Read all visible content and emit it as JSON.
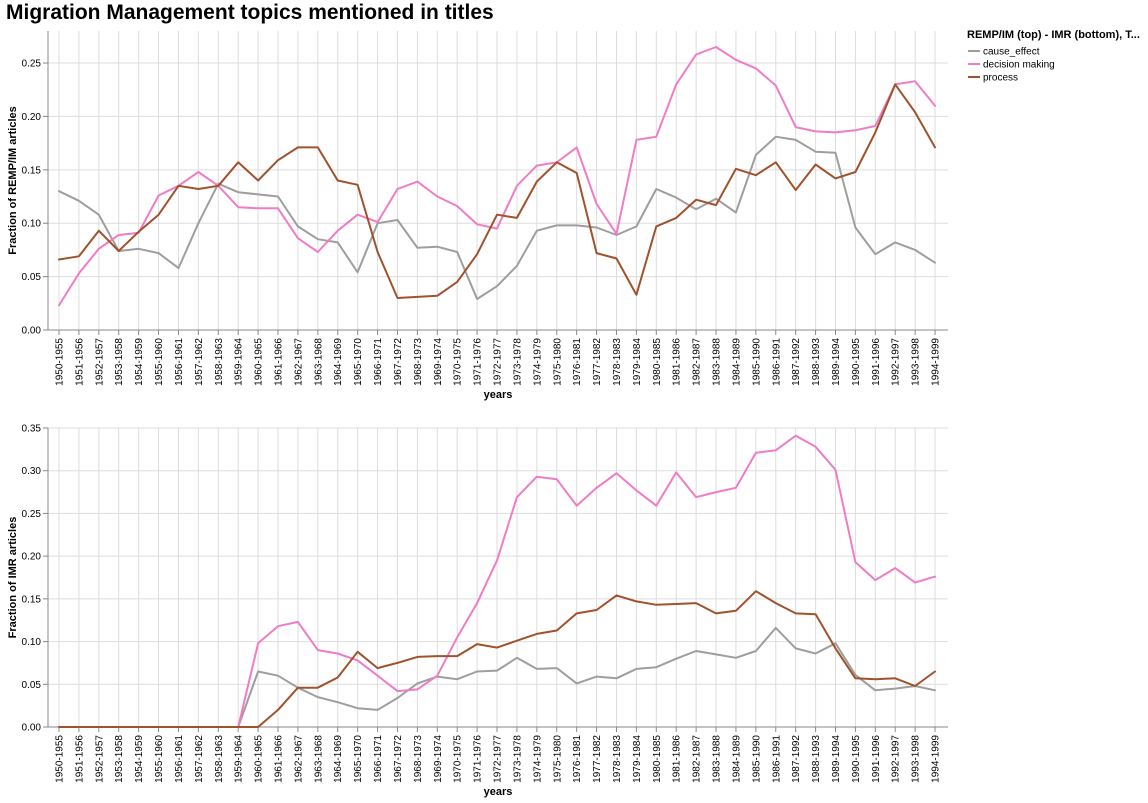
{
  "title": "Migration Management topics mentioned in titles",
  "legend": {
    "title": "REMP/IM (top) - IMR (bottom), T...",
    "position": "top-right"
  },
  "colors": {
    "cause_effect": "#9e9e9e",
    "decision making": "#f07cc6",
    "process": "#a0522d"
  },
  "chart_data": [
    {
      "type": "line",
      "xlabel": "years",
      "ylabel": "Fraction of REMP/IM articles",
      "ylim": [
        0,
        0.28
      ],
      "yticks": [
        0.0,
        0.05,
        0.1,
        0.15,
        0.2,
        0.25
      ],
      "ytick_labels": [
        "0.00",
        "0.05",
        "0.10",
        "0.15",
        "0.20",
        "0.25"
      ],
      "grid": true,
      "categories": [
        "1950-1955",
        "1951-1956",
        "1952-1957",
        "1953-1958",
        "1954-1959",
        "1955-1960",
        "1956-1961",
        "1957-1962",
        "1958-1963",
        "1959-1964",
        "1960-1965",
        "1961-1966",
        "1962-1967",
        "1963-1968",
        "1964-1969",
        "1965-1970",
        "1966-1971",
        "1967-1972",
        "1968-1973",
        "1969-1974",
        "1970-1975",
        "1971-1976",
        "1972-1977",
        "1973-1978",
        "1974-1979",
        "1975-1980",
        "1976-1981",
        "1977-1982",
        "1978-1983",
        "1979-1984",
        "1980-1985",
        "1981-1986",
        "1982-1987",
        "1983-1988",
        "1984-1989",
        "1985-1990",
        "1986-1991",
        "1987-1992",
        "1988-1993",
        "1989-1994",
        "1990-1995",
        "1991-1996",
        "1992-1997",
        "1993-1998",
        "1994-1999"
      ],
      "series": [
        {
          "name": "cause_effect",
          "values": [
            0.13,
            0.121,
            0.108,
            0.074,
            0.076,
            0.072,
            0.058,
            0.1,
            0.137,
            0.129,
            0.127,
            0.125,
            0.097,
            0.085,
            0.082,
            0.054,
            0.1,
            0.103,
            0.077,
            0.078,
            0.073,
            0.029,
            0.041,
            0.06,
            0.093,
            0.098,
            0.098,
            0.096,
            0.089,
            0.097,
            0.132,
            0.124,
            0.113,
            0.123,
            0.11,
            0.164,
            0.181,
            0.178,
            0.167,
            0.166,
            0.096,
            0.071,
            0.082,
            0.075,
            0.063
          ]
        },
        {
          "name": "decision making",
          "values": [
            0.023,
            0.053,
            0.076,
            0.089,
            0.091,
            0.126,
            0.135,
            0.148,
            0.135,
            0.115,
            0.114,
            0.114,
            0.086,
            0.073,
            0.093,
            0.108,
            0.101,
            0.132,
            0.139,
            0.125,
            0.116,
            0.099,
            0.095,
            0.135,
            0.154,
            0.157,
            0.171,
            0.118,
            0.09,
            0.178,
            0.181,
            0.23,
            0.258,
            0.265,
            0.253,
            0.245,
            0.229,
            0.19,
            0.186,
            0.185,
            0.187,
            0.191,
            0.23,
            0.233,
            0.21
          ]
        },
        {
          "name": "process",
          "values": [
            0.066,
            0.069,
            0.093,
            0.074,
            0.092,
            0.108,
            0.135,
            0.132,
            0.135,
            0.157,
            0.14,
            0.159,
            0.171,
            0.171,
            0.14,
            0.136,
            0.073,
            0.03,
            0.031,
            0.032,
            0.045,
            0.071,
            0.108,
            0.105,
            0.139,
            0.157,
            0.147,
            0.072,
            0.067,
            0.033,
            0.097,
            0.105,
            0.122,
            0.117,
            0.151,
            0.145,
            0.157,
            0.131,
            0.155,
            0.142,
            0.148,
            0.185,
            0.23,
            0.204,
            0.171
          ]
        }
      ]
    },
    {
      "type": "line",
      "xlabel": "years",
      "ylabel": "Fraction of IMR articles",
      "ylim": [
        0,
        0.35
      ],
      "yticks": [
        0.0,
        0.05,
        0.1,
        0.15,
        0.2,
        0.25,
        0.3,
        0.35
      ],
      "ytick_labels": [
        "0.00",
        "0.05",
        "0.10",
        "0.15",
        "0.20",
        "0.25",
        "0.30",
        "0.35"
      ],
      "grid": true,
      "categories": [
        "1950-1955",
        "1951-1956",
        "1952-1957",
        "1953-1958",
        "1954-1959",
        "1955-1960",
        "1956-1961",
        "1957-1962",
        "1958-1963",
        "1959-1964",
        "1960-1965",
        "1961-1966",
        "1962-1967",
        "1963-1968",
        "1964-1969",
        "1965-1970",
        "1966-1971",
        "1967-1972",
        "1968-1973",
        "1969-1974",
        "1970-1975",
        "1971-1976",
        "1972-1977",
        "1973-1978",
        "1974-1979",
        "1975-1980",
        "1976-1981",
        "1977-1982",
        "1978-1983",
        "1979-1984",
        "1980-1985",
        "1981-1986",
        "1982-1987",
        "1983-1988",
        "1984-1989",
        "1985-1990",
        "1986-1991",
        "1987-1992",
        "1988-1993",
        "1989-1994",
        "1990-1995",
        "1991-1996",
        "1992-1997",
        "1993-1998",
        "1994-1999"
      ],
      "series": [
        {
          "name": "cause_effect",
          "values": [
            0,
            0,
            0,
            0,
            0,
            0,
            0,
            0,
            0,
            0,
            0.065,
            0.06,
            0.046,
            0.035,
            0.029,
            0.022,
            0.02,
            0.034,
            0.051,
            0.059,
            0.056,
            0.065,
            0.066,
            0.081,
            0.068,
            0.069,
            0.051,
            0.059,
            0.057,
            0.068,
            0.07,
            0.08,
            0.089,
            0.085,
            0.081,
            0.089,
            0.116,
            0.092,
            0.086,
            0.098,
            0.061,
            0.043,
            0.045,
            0.048,
            0.043
          ]
        },
        {
          "name": "decision making",
          "values": [
            0,
            0,
            0,
            0,
            0,
            0,
            0,
            0,
            0,
            0,
            0.098,
            0.118,
            0.123,
            0.09,
            0.086,
            0.078,
            0.06,
            0.042,
            0.044,
            0.06,
            0.105,
            0.145,
            0.195,
            0.269,
            0.293,
            0.29,
            0.259,
            0.28,
            0.297,
            0.277,
            0.259,
            0.298,
            0.269,
            0.275,
            0.28,
            0.321,
            0.324,
            0.341,
            0.328,
            0.301,
            0.193,
            0.172,
            0.186,
            0.169,
            0.176
          ]
        },
        {
          "name": "process",
          "values": [
            0,
            0,
            0,
            0,
            0,
            0,
            0,
            0,
            0,
            0,
            0,
            0.02,
            0.046,
            0.046,
            0.058,
            0.088,
            0.069,
            0.075,
            0.082,
            0.083,
            0.083,
            0.097,
            0.093,
            0.101,
            0.109,
            0.113,
            0.133,
            0.137,
            0.154,
            0.147,
            0.143,
            0.144,
            0.145,
            0.133,
            0.136,
            0.159,
            0.145,
            0.133,
            0.132,
            0.092,
            0.057,
            0.056,
            0.057,
            0.048,
            0.065
          ]
        }
      ]
    }
  ]
}
